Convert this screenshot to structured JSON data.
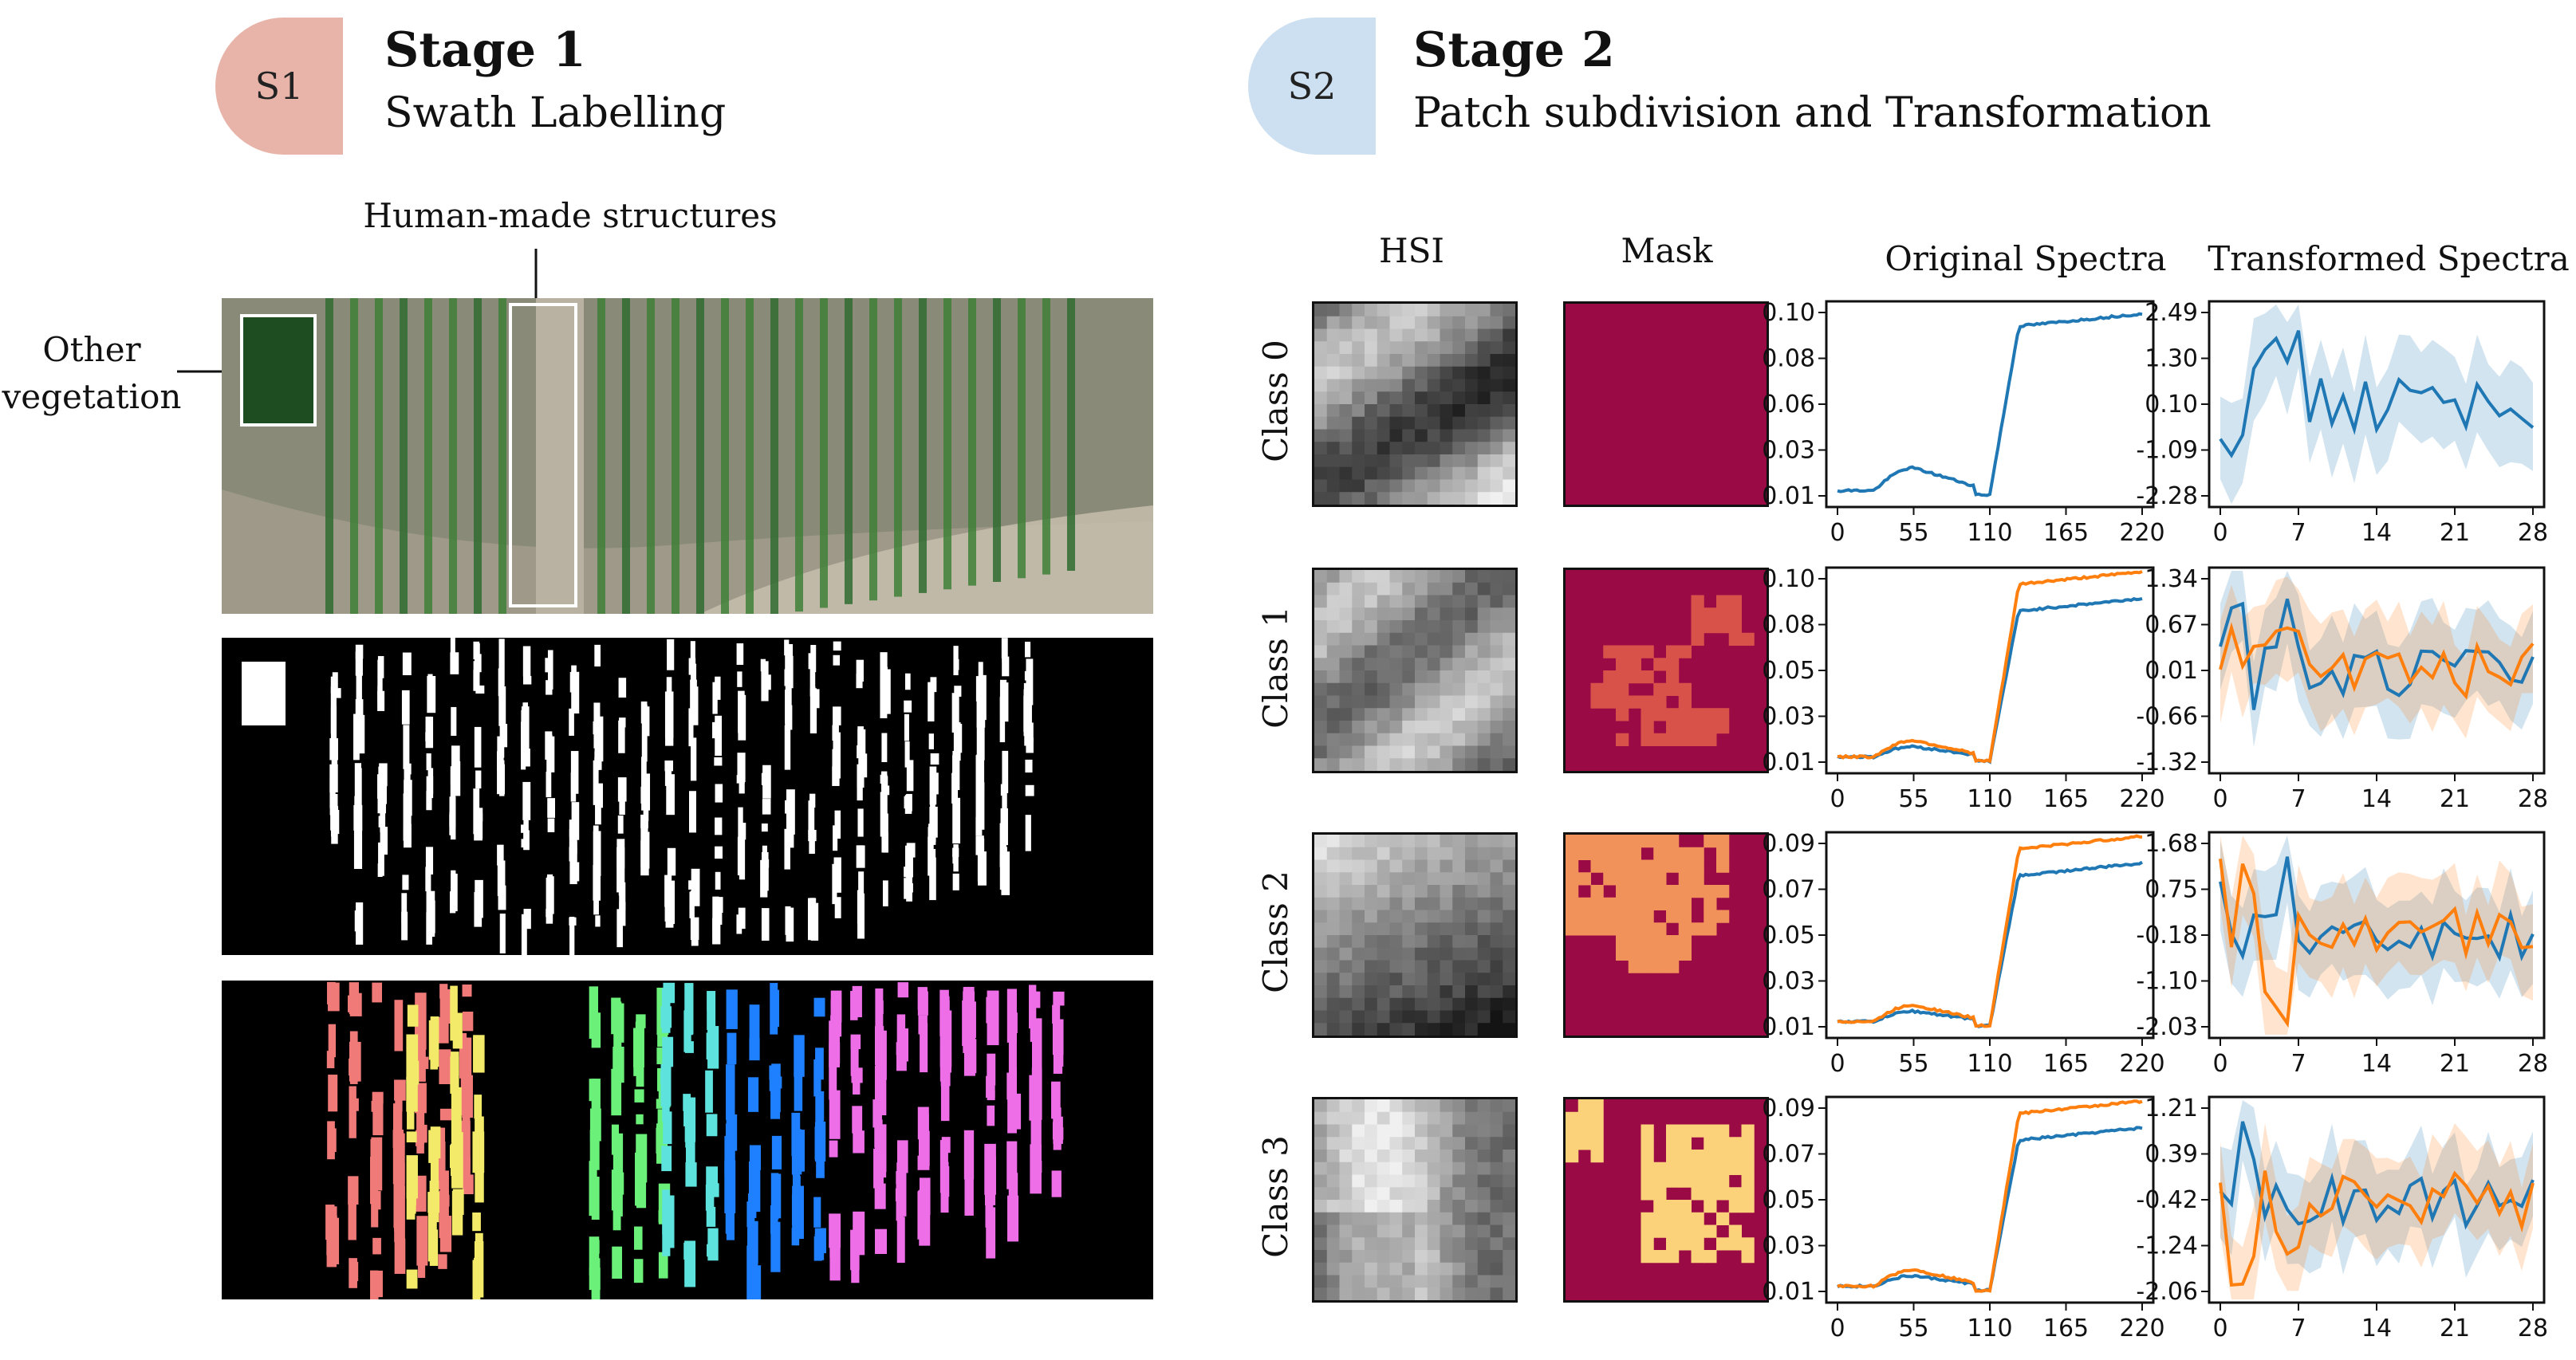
{
  "stage1": {
    "badge": "S1",
    "title": "Stage 1",
    "subtitle": "Swath Labelling",
    "badge_color": "#e8b4aa"
  },
  "stage2": {
    "badge": "S2",
    "title": "Stage 2",
    "subtitle": "Patch subdivision and Transformation",
    "badge_color": "#cde0f1"
  },
  "annotations": {
    "human_made": "Human-made structures",
    "other_veg": "Other\nvegetation"
  },
  "column_headers": [
    "HSI",
    "Mask",
    "Original Spectra",
    "Transformed Spectra"
  ],
  "rows": [
    {
      "label": "Class 0",
      "orig_yticks": [
        "0.10",
        "0.08",
        "0.06",
        "0.03",
        "0.01"
      ],
      "trans_yticks": [
        "2.49",
        "1.30",
        "0.10",
        "-1.09",
        "-2.28"
      ]
    },
    {
      "label": "Class 1",
      "orig_yticks": [
        "0.10",
        "0.08",
        "0.05",
        "0.03",
        "0.01"
      ],
      "trans_yticks": [
        "1.34",
        "0.67",
        "0.01",
        "-0.66",
        "-1.32"
      ]
    },
    {
      "label": "Class 2",
      "orig_yticks": [
        "0.09",
        "0.07",
        "0.05",
        "0.03",
        "0.01"
      ],
      "trans_yticks": [
        "1.68",
        "0.75",
        "-0.18",
        "-1.10",
        "-2.03"
      ]
    },
    {
      "label": "Class 3",
      "orig_yticks": [
        "0.09",
        "0.07",
        "0.05",
        "0.03",
        "0.01"
      ],
      "trans_yticks": [
        "1.21",
        "0.39",
        "-0.42",
        "-1.24",
        "-2.06"
      ]
    }
  ],
  "orig_xticks": [
    "0",
    "55",
    "110",
    "165",
    "220"
  ],
  "trans_xticks": [
    "0",
    "7",
    "14",
    "21",
    "28"
  ],
  "colors": {
    "blue": "#1f77b4",
    "orange": "#ff7f0e",
    "mask_bg": "#9a0a45",
    "mask_c1": "#d9524a",
    "mask_c2": "#f0925a",
    "mask_c3": "#fbd27a"
  },
  "swath_label_colors": [
    "#f07a78",
    "#f4ea6a",
    "#6bf07a",
    "#5de2de",
    "#1f80ff",
    "#ee6ee8"
  ]
}
